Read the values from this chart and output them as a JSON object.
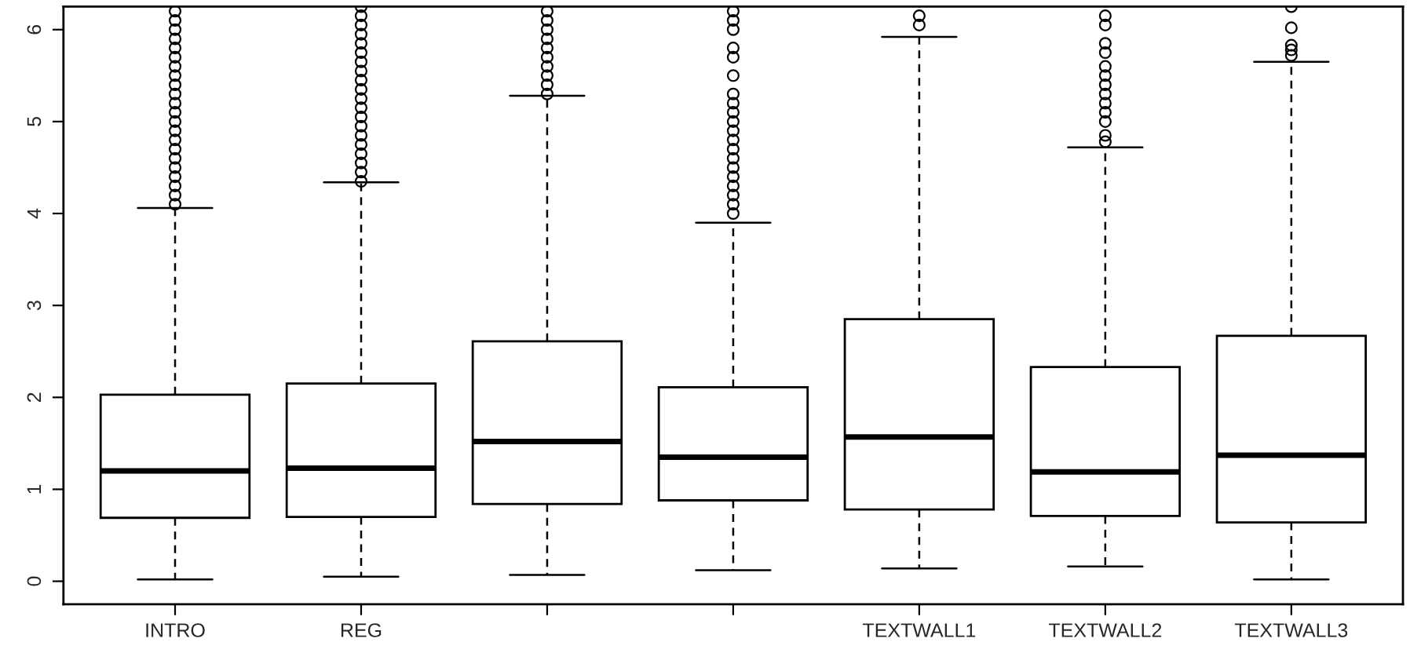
{
  "chart_data": {
    "type": "box",
    "categories": [
      "INTRO",
      "REG",
      null,
      null,
      "TEXTWALL1",
      "TEXTWALL2",
      "TEXTWALL3"
    ],
    "boxes": [
      {
        "low": 0.02,
        "q1": 0.69,
        "median": 1.2,
        "q3": 2.03,
        "high": 4.06,
        "outliers": [
          4.1,
          4.2,
          4.3,
          4.4,
          4.5,
          4.6,
          4.7,
          4.8,
          4.9,
          5.0,
          5.1,
          5.2,
          5.3,
          5.4,
          5.5,
          5.6,
          5.7,
          5.8,
          5.9,
          6.0,
          6.1,
          6.2
        ]
      },
      {
        "low": 0.05,
        "q1": 0.7,
        "median": 1.23,
        "q3": 2.15,
        "high": 4.34,
        "outliers": [
          4.35,
          4.45,
          4.55,
          4.65,
          4.75,
          4.85,
          4.95,
          5.05,
          5.15,
          5.25,
          5.35,
          5.45,
          5.55,
          5.65,
          5.75,
          5.85,
          5.95,
          6.05,
          6.15,
          6.25
        ]
      },
      {
        "low": 0.07,
        "q1": 0.84,
        "median": 1.52,
        "q3": 2.61,
        "high": 5.28,
        "outliers": [
          5.3,
          5.4,
          5.5,
          5.6,
          5.7,
          5.8,
          5.9,
          6.0,
          6.1,
          6.2
        ]
      },
      {
        "low": 0.12,
        "q1": 0.88,
        "median": 1.35,
        "q3": 2.11,
        "high": 3.9,
        "outliers": [
          4.0,
          4.1,
          4.2,
          4.3,
          4.4,
          4.5,
          4.6,
          4.7,
          4.8,
          4.9,
          5.0,
          5.1,
          5.2,
          5.3,
          5.5,
          5.7,
          5.8,
          6.0,
          6.1,
          6.2
        ]
      },
      {
        "low": 0.14,
        "q1": 0.78,
        "median": 1.57,
        "q3": 2.85,
        "high": 5.92,
        "outliers": [
          6.05,
          6.15
        ]
      },
      {
        "low": 0.16,
        "q1": 0.71,
        "median": 1.19,
        "q3": 2.33,
        "high": 4.72,
        "outliers": [
          4.78,
          4.85,
          5.0,
          5.1,
          5.2,
          5.3,
          5.4,
          5.5,
          5.6,
          5.75,
          5.85,
          6.05,
          6.15
        ]
      },
      {
        "low": 0.02,
        "q1": 0.64,
        "median": 1.37,
        "q3": 2.67,
        "high": 5.65,
        "outliers": [
          5.72,
          5.78,
          5.83,
          6.02,
          6.25
        ]
      }
    ],
    "ylim": [
      -0.25,
      6.25
    ],
    "yticks": [
      0,
      1,
      2,
      3,
      4,
      5,
      6
    ],
    "grid": false
  }
}
